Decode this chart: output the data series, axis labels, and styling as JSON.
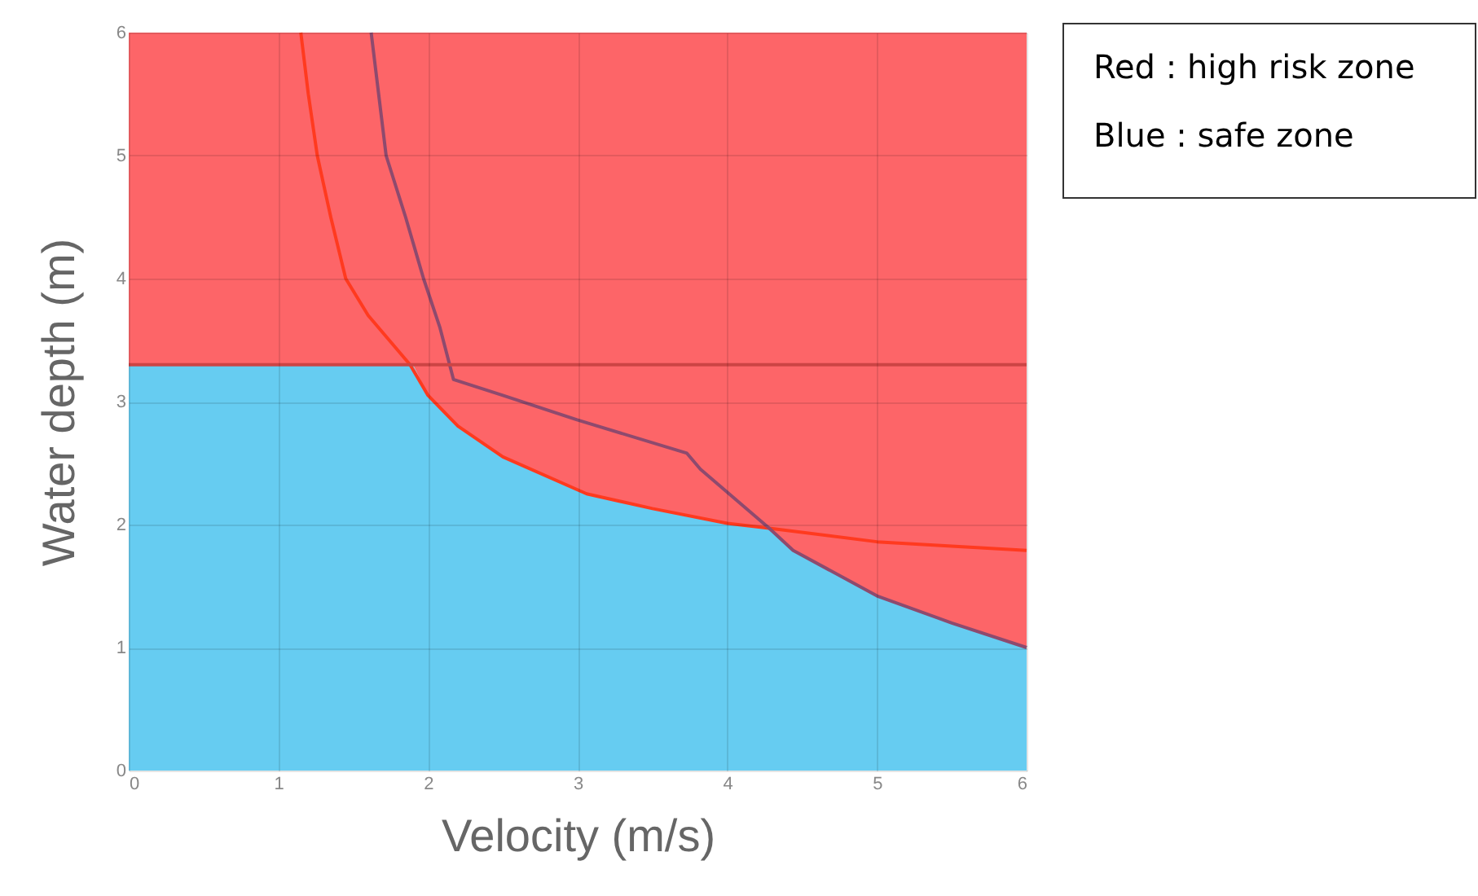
{
  "chart_data": {
    "type": "line",
    "xlabel": "Velocity (m/s)",
    "ylabel": "Water depth (m)",
    "xlim": [
      0,
      6
    ],
    "ylim": [
      0,
      6
    ],
    "xticks": [
      0,
      1,
      2,
      3,
      4,
      5,
      6
    ],
    "yticks": [
      0,
      1,
      2,
      3,
      4,
      5,
      6
    ],
    "grid": true,
    "legend": false,
    "stacked": true,
    "series": [
      {
        "type": "area",
        "color": "#66ccf1",
        "x": [
          0,
          1.9,
          2.0,
          2.2,
          2.5,
          3.06,
          3.5,
          4.0,
          4.28,
          4.44,
          5.0,
          5.5,
          6.0
        ],
        "values": [
          3.3,
          3.3,
          3.05,
          2.8,
          2.55,
          2.25,
          2.13,
          2.01,
          1.97,
          1.79,
          1.42,
          1.2,
          1.0
        ]
      },
      {
        "type": "area",
        "color": "#fd6568",
        "x": [
          0,
          1.9,
          2.0,
          2.2,
          2.5,
          3.06,
          3.5,
          4.0,
          4.28,
          4.44,
          5.0,
          5.5,
          6.0
        ],
        "values": [
          2.7,
          2.7,
          2.95,
          3.2,
          3.45,
          3.75,
          3.87,
          3.99,
          4.03,
          4.21,
          4.58,
          4.8,
          5.0
        ]
      },
      {
        "type": "line",
        "color": "#ff3a1f",
        "x": [
          1.15,
          1.2,
          1.26,
          1.35,
          1.45,
          1.6,
          1.88,
          2.0,
          2.2,
          2.5,
          3.06,
          3.5,
          4.0,
          4.28,
          5.0,
          6.0
        ],
        "values": [
          6,
          5.5,
          5,
          4.5,
          4,
          3.7,
          3.3,
          3.05,
          2.8,
          2.55,
          2.25,
          2.13,
          2.01,
          1.97,
          1.86,
          1.79
        ]
      },
      {
        "type": "line",
        "color": "#8e4a6e",
        "x": [
          1.62,
          1.72,
          1.85,
          1.97,
          2.08,
          2.17,
          2.5,
          3.0,
          3.73,
          3.82,
          4.28,
          4.44,
          5.0,
          5.5,
          6.0
        ],
        "values": [
          6,
          5,
          4.5,
          4,
          3.6,
          3.18,
          3.05,
          2.85,
          2.58,
          2.45,
          1.97,
          1.79,
          1.42,
          1.2,
          1.0
        ]
      }
    ],
    "ref_lines": [
      {
        "axis": "y",
        "value": 3.3,
        "color": "#cc4444"
      }
    ],
    "annotations": [
      "Red : high risk zone",
      "Blue : safe zone"
    ]
  }
}
